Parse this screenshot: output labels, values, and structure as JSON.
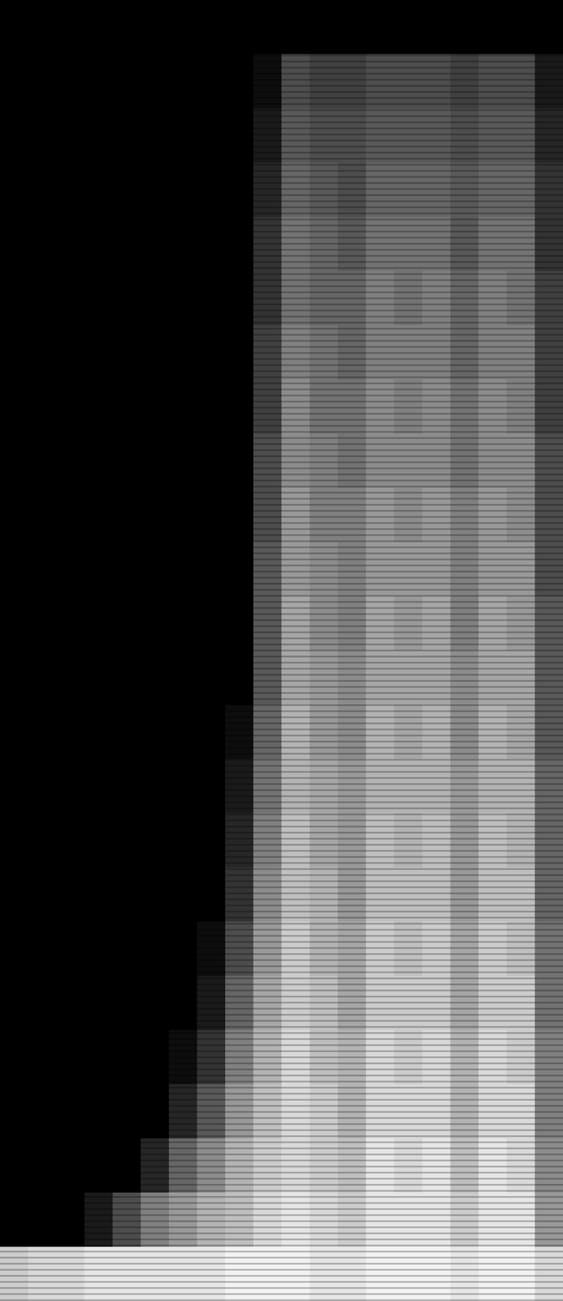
{
  "chart_data": {
    "type": "heatmap",
    "tick_labels": false,
    "zlim": [
      0,
      1
    ],
    "cells": [
      [
        0,
        0,
        0,
        0,
        0,
        0,
        0,
        0,
        0,
        0,
        0,
        0,
        0,
        0,
        0,
        0,
        0,
        0,
        0,
        0
      ],
      [
        0,
        0,
        0,
        0,
        0,
        0,
        0,
        0,
        0,
        0.05,
        0.3,
        0.25,
        0.25,
        0.3,
        0.3,
        0.3,
        0.25,
        0.3,
        0.3,
        0.1
      ],
      [
        0,
        0,
        0,
        0,
        0,
        0,
        0,
        0,
        0,
        0.1,
        0.35,
        0.3,
        0.3,
        0.35,
        0.35,
        0.35,
        0.3,
        0.35,
        0.35,
        0.15
      ],
      [
        0,
        0,
        0,
        0,
        0,
        0,
        0,
        0,
        0,
        0.15,
        0.4,
        0.35,
        0.3,
        0.4,
        0.4,
        0.4,
        0.35,
        0.4,
        0.4,
        0.2
      ],
      [
        0,
        0,
        0,
        0,
        0,
        0,
        0,
        0,
        0,
        0.2,
        0.45,
        0.4,
        0.35,
        0.45,
        0.45,
        0.45,
        0.35,
        0.45,
        0.45,
        0.2
      ],
      [
        0,
        0,
        0,
        0,
        0,
        0,
        0,
        0,
        0,
        0.2,
        0.45,
        0.4,
        0.4,
        0.5,
        0.45,
        0.5,
        0.4,
        0.5,
        0.45,
        0.25
      ],
      [
        0,
        0,
        0,
        0,
        0,
        0,
        0,
        0,
        0,
        0.25,
        0.5,
        0.45,
        0.4,
        0.5,
        0.5,
        0.5,
        0.4,
        0.5,
        0.5,
        0.25
      ],
      [
        0,
        0,
        0,
        0,
        0,
        0,
        0,
        0,
        0,
        0.25,
        0.55,
        0.45,
        0.45,
        0.55,
        0.5,
        0.55,
        0.45,
        0.55,
        0.5,
        0.25
      ],
      [
        0,
        0,
        0,
        0,
        0,
        0,
        0,
        0,
        0,
        0.3,
        0.55,
        0.5,
        0.45,
        0.55,
        0.55,
        0.55,
        0.45,
        0.55,
        0.55,
        0.3
      ],
      [
        0,
        0,
        0,
        0,
        0,
        0,
        0,
        0,
        0,
        0.3,
        0.6,
        0.5,
        0.5,
        0.6,
        0.55,
        0.6,
        0.5,
        0.6,
        0.55,
        0.3
      ],
      [
        0,
        0,
        0,
        0,
        0,
        0,
        0,
        0,
        0,
        0.35,
        0.6,
        0.55,
        0.5,
        0.6,
        0.6,
        0.6,
        0.5,
        0.6,
        0.6,
        0.3
      ],
      [
        0,
        0,
        0,
        0,
        0,
        0,
        0,
        0,
        0,
        0.35,
        0.65,
        0.55,
        0.5,
        0.65,
        0.6,
        0.65,
        0.5,
        0.65,
        0.6,
        0.35
      ],
      [
        0,
        0,
        0,
        0,
        0,
        0,
        0,
        0,
        0,
        0.35,
        0.65,
        0.6,
        0.55,
        0.65,
        0.65,
        0.65,
        0.55,
        0.65,
        0.65,
        0.35
      ],
      [
        0,
        0,
        0,
        0,
        0,
        0,
        0,
        0,
        0.05,
        0.4,
        0.7,
        0.6,
        0.55,
        0.7,
        0.65,
        0.7,
        0.55,
        0.7,
        0.65,
        0.35
      ],
      [
        0,
        0,
        0,
        0,
        0,
        0,
        0,
        0,
        0.1,
        0.45,
        0.7,
        0.65,
        0.6,
        0.7,
        0.7,
        0.7,
        0.6,
        0.7,
        0.7,
        0.4
      ],
      [
        0,
        0,
        0,
        0,
        0,
        0,
        0,
        0,
        0.15,
        0.5,
        0.75,
        0.65,
        0.6,
        0.75,
        0.7,
        0.75,
        0.6,
        0.75,
        0.7,
        0.4
      ],
      [
        0,
        0,
        0,
        0,
        0,
        0,
        0,
        0,
        0.2,
        0.55,
        0.75,
        0.7,
        0.6,
        0.75,
        0.75,
        0.75,
        0.6,
        0.75,
        0.75,
        0.4
      ],
      [
        0,
        0,
        0,
        0,
        0,
        0,
        0,
        0.05,
        0.3,
        0.6,
        0.8,
        0.7,
        0.65,
        0.8,
        0.75,
        0.8,
        0.65,
        0.8,
        0.75,
        0.45
      ],
      [
        0,
        0,
        0,
        0,
        0,
        0,
        0,
        0.1,
        0.4,
        0.65,
        0.8,
        0.75,
        0.65,
        0.8,
        0.8,
        0.8,
        0.65,
        0.8,
        0.8,
        0.45
      ],
      [
        0,
        0,
        0,
        0,
        0,
        0,
        0.05,
        0.2,
        0.5,
        0.7,
        0.85,
        0.75,
        0.7,
        0.85,
        0.8,
        0.85,
        0.7,
        0.85,
        0.8,
        0.5
      ],
      [
        0,
        0,
        0,
        0,
        0,
        0,
        0.15,
        0.35,
        0.6,
        0.75,
        0.85,
        0.8,
        0.7,
        0.85,
        0.85,
        0.85,
        0.7,
        0.85,
        0.85,
        0.5
      ],
      [
        0,
        0,
        0,
        0,
        0,
        0.15,
        0.4,
        0.55,
        0.7,
        0.8,
        0.85,
        0.8,
        0.75,
        0.9,
        0.85,
        0.9,
        0.75,
        0.9,
        0.85,
        0.55
      ],
      [
        0,
        0,
        0,
        0.1,
        0.3,
        0.5,
        0.6,
        0.7,
        0.75,
        0.85,
        0.9,
        0.85,
        0.8,
        0.9,
        0.9,
        0.9,
        0.8,
        0.9,
        0.9,
        0.6
      ],
      [
        0.8,
        0.85,
        0.85,
        0.9,
        0.9,
        0.9,
        0.9,
        0.9,
        0.95,
        0.95,
        0.95,
        0.9,
        0.9,
        0.95,
        0.95,
        0.95,
        0.9,
        0.95,
        0.95,
        0.85
      ]
    ]
  }
}
